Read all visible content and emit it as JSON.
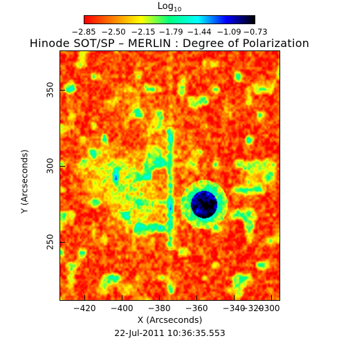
{
  "colorbar": {
    "label_main": "Log",
    "label_sub": "10",
    "ticks": [
      "−2.85",
      "−2.50",
      "−2.15",
      "−1.79",
      "−1.44",
      "−1.09",
      "−0.73"
    ],
    "colors": [
      "#ff0000",
      "#ff7f00",
      "#ffff00",
      "#00ff7f",
      "#00ffff",
      "#0000ff",
      "#000000"
    ]
  },
  "title": "Hinode SOT/SP – MERLIN : Degree of Polarization",
  "x_axis": {
    "label": "X (Arcseconds)",
    "ticks": [
      "−420",
      "−400",
      "−380",
      "−360",
      "−340",
      "−320",
      "−300"
    ]
  },
  "y_axis": {
    "label": "Y (Arcseconds)",
    "ticks": [
      "350",
      "300",
      "250"
    ]
  },
  "timestamp": "22-Jul-2011 10:36:35.553"
}
